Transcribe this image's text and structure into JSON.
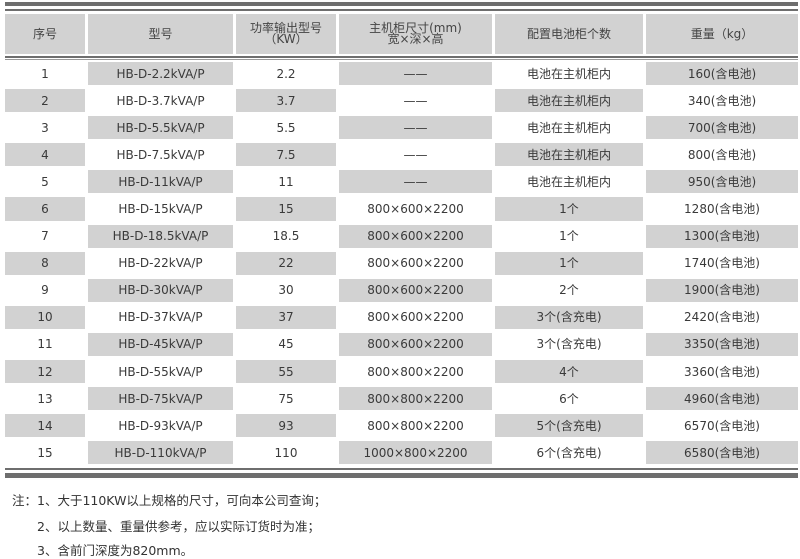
{
  "table": {
    "headers": [
      "序号",
      "型号",
      "功率输出型号\n（KW）",
      "主机柜尺寸(mm)\n宽×深×高",
      "配置电池柜个数",
      "重量（kg）"
    ],
    "rows": [
      [
        "1",
        "HB-D-2.2kVA/P",
        "2.2",
        "——",
        "电池在主机柜内",
        "160(含电池)"
      ],
      [
        "2",
        "HB-D-3.7kVA/P",
        "3.7",
        "——",
        "电池在主机柜内",
        "340(含电池)"
      ],
      [
        "3",
        "HB-D-5.5kVA/P",
        "5.5",
        "——",
        "电池在主机柜内",
        "700(含电池)"
      ],
      [
        "4",
        "HB-D-7.5kVA/P",
        "7.5",
        "——",
        "电池在主机柜内",
        "800(含电池)"
      ],
      [
        "5",
        "HB-D-11kVA/P",
        "11",
        "——",
        "电池在主机柜内",
        "950(含电池)"
      ],
      [
        "6",
        "HB-D-15kVA/P",
        "15",
        "800×600×2200",
        "1个",
        "1280(含电池)"
      ],
      [
        "7",
        "HB-D-18.5kVA/P",
        "18.5",
        "800×600×2200",
        "1个",
        "1300(含电池)"
      ],
      [
        "8",
        "HB-D-22kVA/P",
        "22",
        "800×600×2200",
        "1个",
        "1740(含电池)"
      ],
      [
        "9",
        "HB-D-30kVA/P",
        "30",
        "800×600×2200",
        "2个",
        "1900(含电池)"
      ],
      [
        "10",
        "HB-D-37kVA/P",
        "37",
        "800×600×2200",
        "3个(含充电)",
        "2420(含电池)"
      ],
      [
        "11",
        "HB-D-45kVA/P",
        "45",
        "800×600×2200",
        "3个(含充电)",
        "3350(含电池)"
      ],
      [
        "12",
        "HB-D-55kVA/P",
        "55",
        "800×800×2200",
        "4个",
        "3360(含电池)"
      ],
      [
        "13",
        "HB-D-75kVA/P",
        "75",
        "800×800×2200",
        "6个",
        "4960(含电池)"
      ],
      [
        "14",
        "HB-D-93kVA/P",
        "93",
        "800×800×2200",
        "5个(含充电)",
        "6570(含电池)"
      ],
      [
        "15",
        "HB-D-110kVA/P",
        "110",
        "1000×800×2200",
        "6个(含充电)",
        "6580(含电池)"
      ]
    ]
  },
  "notes": [
    "注：1、大于110KW以上规格的尺寸，可向本公司查询；",
    "2、以上数量、重量供参考，应以实际订货时为准；",
    "3、含前门深度为820mm。"
  ],
  "colors": {
    "cell_gray": "#d2d2d2",
    "rule": "#6e6e6e"
  }
}
